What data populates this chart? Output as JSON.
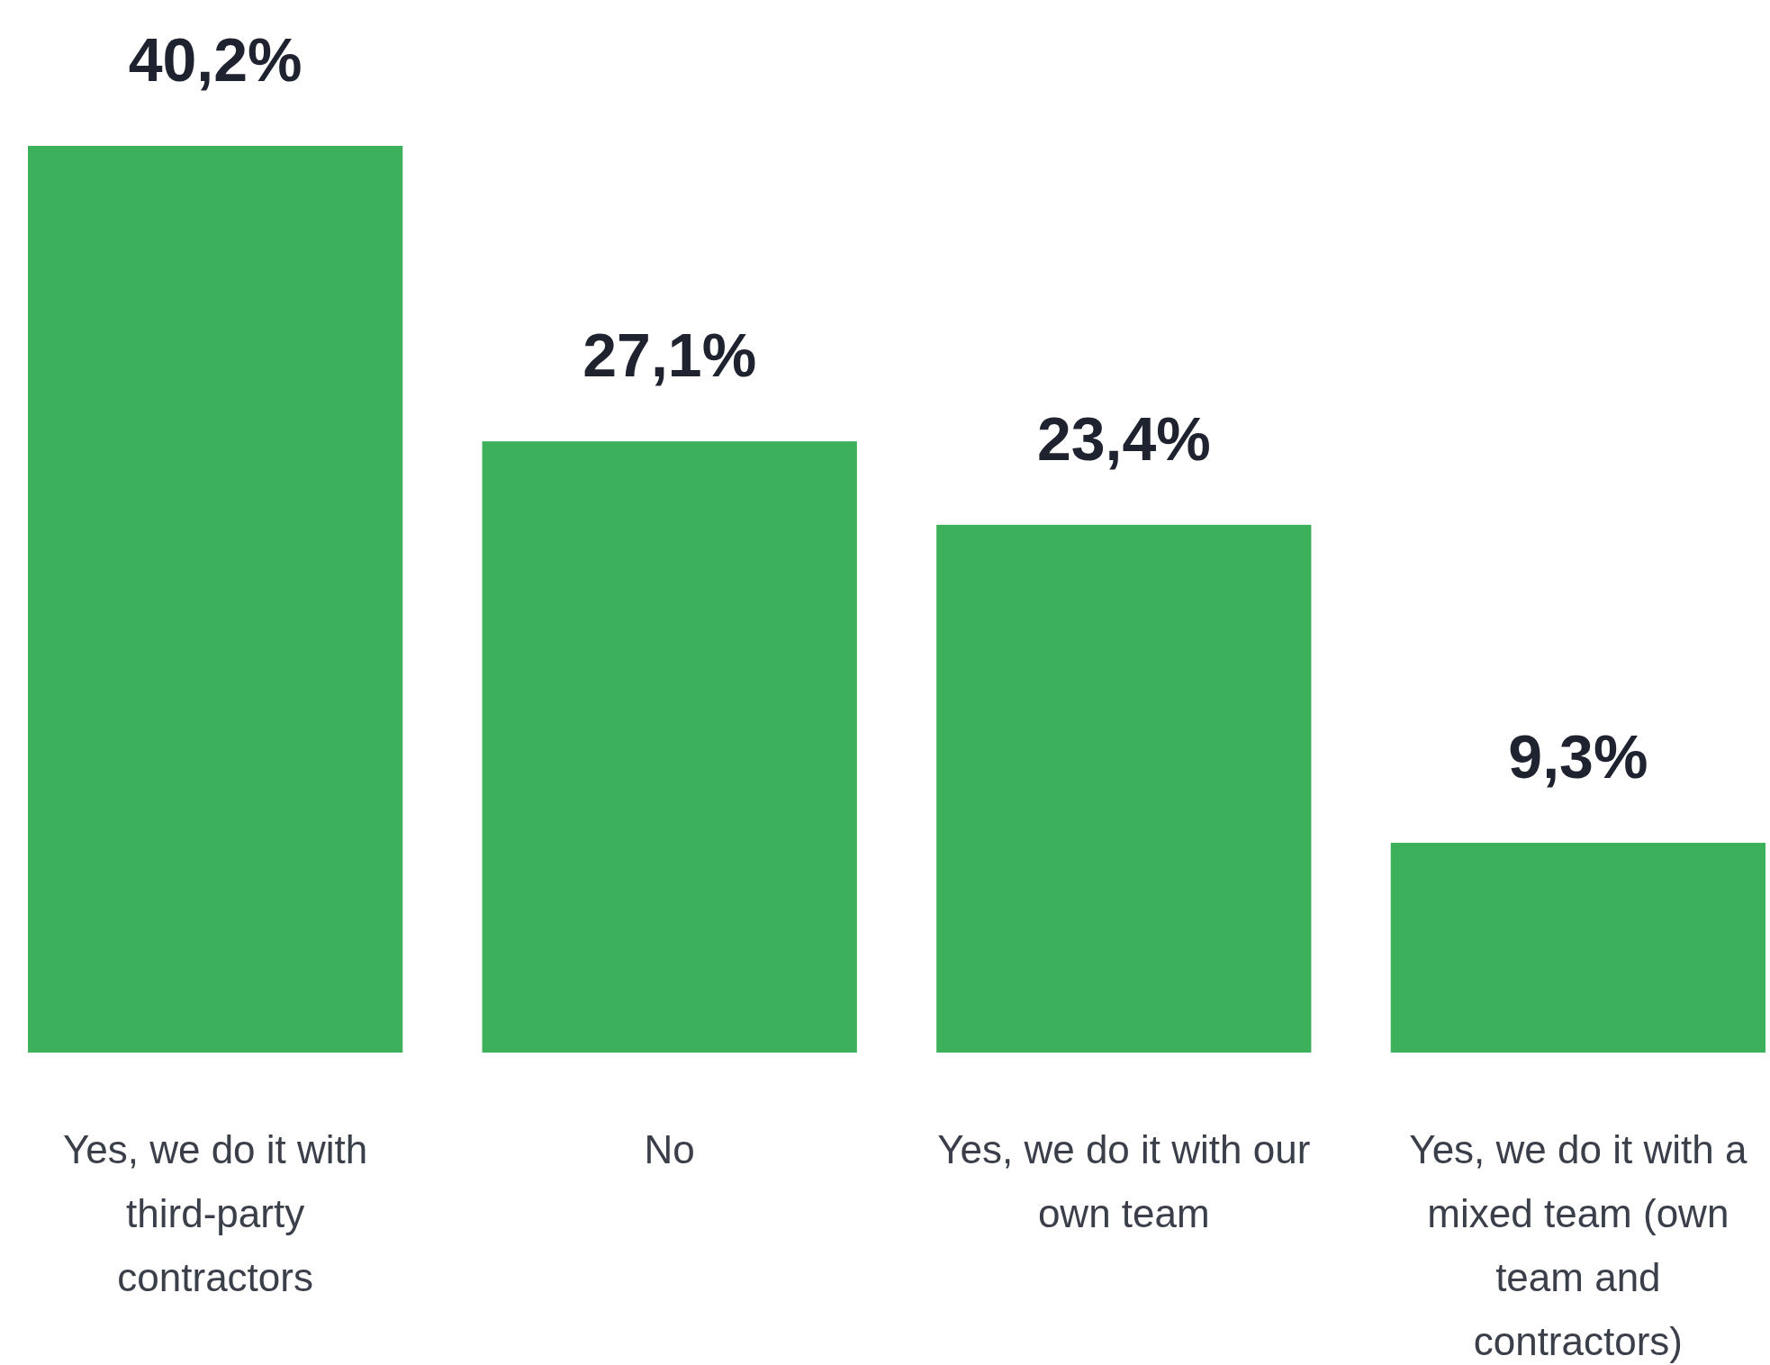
{
  "chart_data": {
    "type": "bar",
    "categories": [
      "Yes, we do it with third-party contractors",
      "No",
      "Yes, we do it with our own team",
      "Yes, we do it with a mixed team (own team and contractors)"
    ],
    "values": [
      40.2,
      27.1,
      23.4,
      9.3
    ],
    "value_labels": [
      "40,2%",
      "27,1%",
      "23,4%",
      "9,3%"
    ],
    "color": "#3cb05a"
  }
}
